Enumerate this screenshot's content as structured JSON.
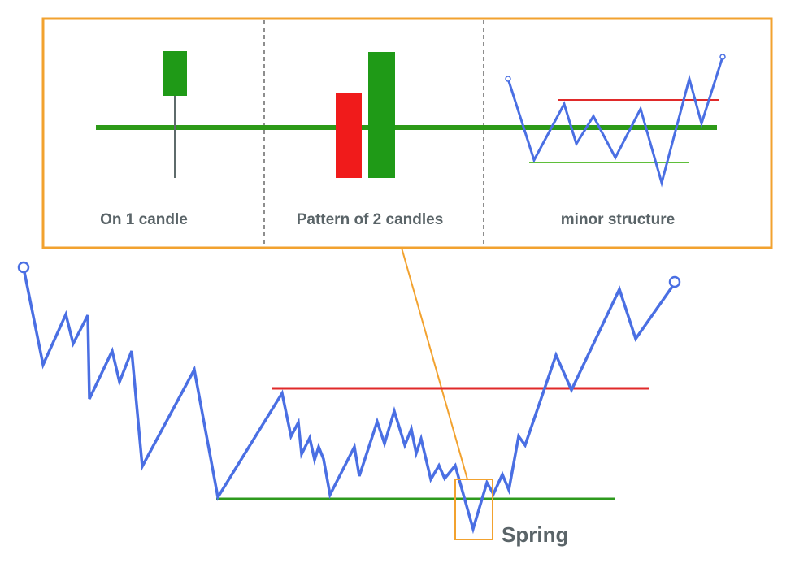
{
  "panels": [
    {
      "label": "On 1 candle"
    },
    {
      "label": "Pattern of 2 candles"
    },
    {
      "label": "minor structure"
    }
  ],
  "main_label": "Spring",
  "colors": {
    "price_line": "#4a6fe3",
    "resistance": "#e02a2a",
    "support": "#2e9a1e",
    "support_thick": "#2d9a18",
    "bull_candle": "#1f9a17",
    "bear_candle": "#f01b1b",
    "wick": "#5e6b6b",
    "highlight": "#f2a22f",
    "divider": "#444444",
    "text": "#5a6468"
  },
  "icons": [
    "start-point-marker",
    "end-point-marker"
  ]
}
